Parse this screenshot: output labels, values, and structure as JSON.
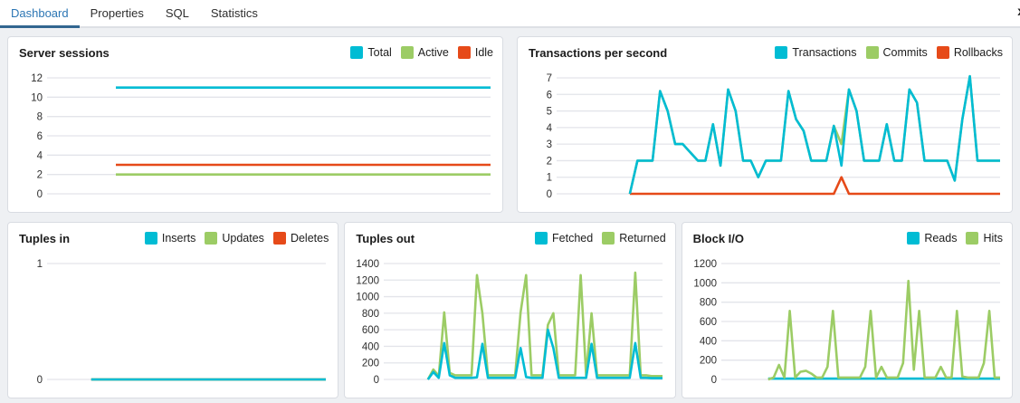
{
  "tabs": {
    "items": [
      {
        "label": "Dashboard",
        "active": true
      },
      {
        "label": "Properties",
        "active": false
      },
      {
        "label": "SQL",
        "active": false
      },
      {
        "label": "Statistics",
        "active": false
      }
    ],
    "overflow_icon": "x"
  },
  "colors": {
    "cyan": "#00bcd4",
    "green": "#9ccc65",
    "red": "#e64a19",
    "accent": "#326690",
    "grid": "#e3e4ea",
    "tick_text": "#2e2e2e"
  },
  "chart_data": [
    {
      "type": "line",
      "title": "Server sessions",
      "ylim": [
        0,
        12
      ],
      "yticks": [
        0,
        2,
        4,
        6,
        8,
        10,
        12
      ],
      "start_frac": 0.15,
      "grid": true,
      "legend_position": "top-right",
      "draw_order": [
        2,
        1,
        0
      ],
      "series": [
        {
          "name": "Total",
          "color": "cyan",
          "values": [
            11,
            11
          ]
        },
        {
          "name": "Active",
          "color": "green",
          "values": [
            2,
            2
          ]
        },
        {
          "name": "Idle",
          "color": "red",
          "values": [
            3,
            3
          ]
        }
      ]
    },
    {
      "type": "line",
      "title": "Transactions per second",
      "ylim": [
        0,
        7
      ],
      "yticks": [
        0,
        1,
        2,
        3,
        4,
        5,
        6,
        7
      ],
      "start_frac": 0.16,
      "grid": true,
      "legend_position": "top-right",
      "draw_order": [
        1,
        2,
        0
      ],
      "series": [
        {
          "name": "Transactions",
          "color": "cyan",
          "values": [
            0,
            2,
            2,
            2,
            6.2,
            5,
            3,
            3,
            2.5,
            2,
            2,
            4.2,
            1.7,
            6.3,
            5,
            2,
            2,
            1,
            2,
            2,
            2,
            6.2,
            4.5,
            3.8,
            2,
            2,
            2,
            4.1,
            1.7,
            6.3,
            5,
            2,
            2,
            2,
            4.2,
            2,
            2,
            6.3,
            5.5,
            2,
            2,
            2,
            2,
            0.8,
            4.5,
            7.1,
            2,
            2,
            2,
            2
          ]
        },
        {
          "name": "Commits",
          "color": "green",
          "values": [
            0,
            2,
            2,
            2,
            6.2,
            5,
            3,
            3,
            2.5,
            2,
            2,
            4.2,
            1.7,
            6.3,
            5,
            2,
            2,
            1,
            2,
            2,
            2,
            6.2,
            4.5,
            3.8,
            2,
            2,
            2,
            4.1,
            3,
            6.3,
            5,
            2,
            2,
            2,
            4.2,
            2,
            2,
            6.3,
            5.5,
            2,
            2,
            2,
            2,
            0.8,
            4.5,
            7.1,
            2,
            2,
            2,
            2
          ]
        },
        {
          "name": "Rollbacks",
          "color": "red",
          "values": [
            0,
            0,
            0,
            0,
            0,
            0,
            0,
            0,
            0,
            0,
            0,
            0,
            0,
            0,
            0,
            0,
            0,
            0,
            0,
            0,
            0,
            0,
            0,
            0,
            0,
            0,
            0,
            0,
            1,
            0,
            0,
            0,
            0,
            0,
            0,
            0,
            0,
            0,
            0,
            0,
            0,
            0,
            0,
            0,
            0,
            0,
            0,
            0,
            0,
            0
          ]
        }
      ]
    },
    {
      "type": "line",
      "title": "Tuples in",
      "ylim": [
        0,
        1
      ],
      "yticks": [
        0,
        1
      ],
      "start_frac": 0.15,
      "grid": true,
      "legend_position": "top-right",
      "draw_order": [
        2,
        1,
        0
      ],
      "series": [
        {
          "name": "Inserts",
          "color": "cyan",
          "values": [
            0,
            0
          ]
        },
        {
          "name": "Updates",
          "color": "green",
          "values": [
            0,
            0
          ]
        },
        {
          "name": "Deletes",
          "color": "red",
          "values": [
            0,
            0
          ]
        }
      ]
    },
    {
      "type": "line",
      "title": "Tuples out",
      "ylim": [
        0,
        1400
      ],
      "yticks": [
        0,
        200,
        400,
        600,
        800,
        1000,
        1200,
        1400
      ],
      "start_frac": 0.15,
      "grid": true,
      "legend_position": "top-right",
      "draw_order": [
        1,
        0
      ],
      "series": [
        {
          "name": "Fetched",
          "color": "cyan",
          "values": [
            0,
            90,
            20,
            440,
            50,
            20,
            20,
            20,
            20,
            25,
            430,
            20,
            20,
            20,
            20,
            20,
            20,
            380,
            30,
            20,
            20,
            20,
            600,
            380,
            20,
            20,
            20,
            20,
            20,
            20,
            430,
            20,
            20,
            20,
            20,
            20,
            20,
            20,
            440,
            20,
            20,
            15,
            15,
            15
          ]
        },
        {
          "name": "Returned",
          "color": "green",
          "values": [
            0,
            120,
            40,
            810,
            80,
            50,
            50,
            50,
            50,
            1260,
            800,
            50,
            50,
            50,
            50,
            50,
            50,
            810,
            1260,
            50,
            50,
            50,
            660,
            800,
            50,
            50,
            50,
            50,
            1260,
            50,
            800,
            50,
            50,
            50,
            50,
            50,
            50,
            50,
            1290,
            50,
            50,
            40,
            40,
            40
          ]
        }
      ]
    },
    {
      "type": "line",
      "title": "Block I/O",
      "ylim": [
        0,
        1200
      ],
      "yticks": [
        0,
        200,
        400,
        600,
        800,
        1000,
        1200
      ],
      "start_frac": 0.16,
      "grid": true,
      "legend_position": "top-right",
      "draw_order": [
        0,
        1
      ],
      "series": [
        {
          "name": "Reads",
          "color": "cyan",
          "values": [
            8,
            8
          ]
        },
        {
          "name": "Hits",
          "color": "green",
          "values": [
            0,
            20,
            150,
            20,
            710,
            20,
            80,
            90,
            60,
            20,
            20,
            130,
            710,
            20,
            20,
            20,
            20,
            20,
            130,
            710,
            20,
            130,
            20,
            20,
            20,
            170,
            1020,
            100,
            710,
            20,
            20,
            20,
            130,
            20,
            20,
            710,
            30,
            20,
            20,
            20,
            170,
            710,
            20,
            20
          ]
        }
      ]
    }
  ]
}
